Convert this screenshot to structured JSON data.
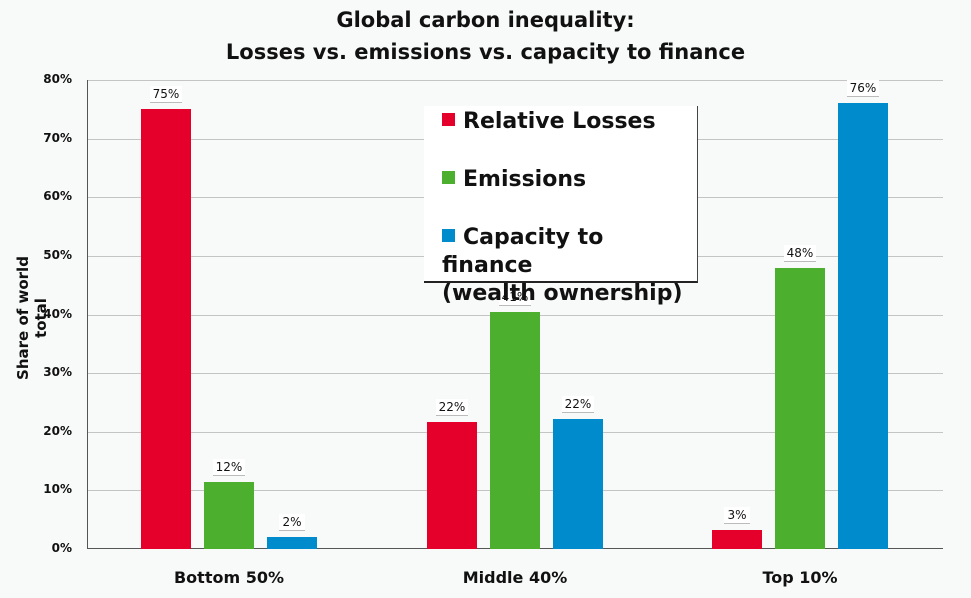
{
  "chart_data": {
    "type": "bar",
    "title": "Global carbon inequality:",
    "subtitle": "Losses vs. emissions vs. capacity to finance",
    "xlabel": "",
    "ylabel": "Share of world total",
    "ylim": [
      0,
      80
    ],
    "yticks": [
      "0%",
      "10%",
      "20%",
      "30%",
      "40%",
      "50%",
      "60%",
      "70%",
      "80%"
    ],
    "grid": true,
    "legend_position": "top-center inside",
    "categories": [
      "Bottom 50%",
      "Middle 40%",
      "Top 10%"
    ],
    "series": [
      {
        "name": "Relative Losses",
        "color": "#e4002b",
        "values": [
          75,
          22,
          3
        ],
        "labels": [
          "75%",
          "22%",
          "3%"
        ]
      },
      {
        "name": "Emissions",
        "color": "#4caf2e",
        "values": [
          12,
          41,
          48
        ],
        "labels": [
          "12%",
          "41%",
          "48%"
        ]
      },
      {
        "name": "Capacity to finance (wealth ownership)",
        "color": "#008ccc",
        "values": [
          2,
          22,
          76
        ],
        "labels": [
          "2%",
          "22%",
          "76%"
        ]
      }
    ],
    "bar_heights_estimated": [
      [
        75,
        21.6,
        3.3
      ],
      [
        11.5,
        40.5,
        48
      ],
      [
        2,
        22.1,
        76
      ]
    ]
  },
  "legend": {
    "items": [
      {
        "label": "Relative Losses",
        "color": "#e4002b"
      },
      {
        "label": "Emissions",
        "color": "#4caf2e"
      },
      {
        "label": "Capacity to finance",
        "label_line2": "(wealth ownership)",
        "color": "#008ccc"
      }
    ]
  }
}
